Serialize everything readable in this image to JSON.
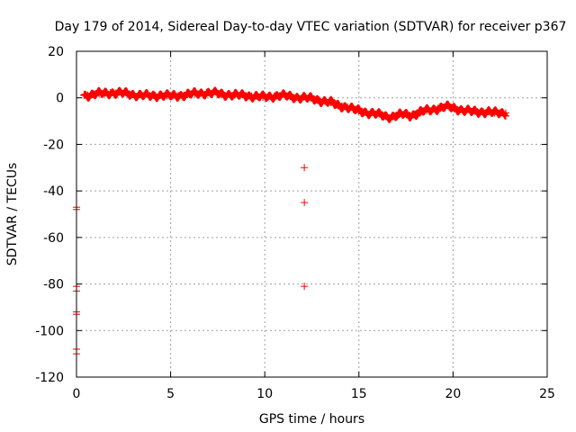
{
  "chart_data": {
    "type": "scatter",
    "title": "Day 179 of 2014, Sidereal Day-to-day VTEC variation (SDTVAR) for receiver p367",
    "xlabel": "GPS time / hours",
    "ylabel": "SDTVAR / TECUs",
    "xlim": [
      0,
      25
    ],
    "ylim": [
      -120,
      20
    ],
    "xticks": [
      0,
      5,
      10,
      15,
      20,
      25
    ],
    "yticks": [
      -120,
      -100,
      -80,
      -60,
      -40,
      -20,
      0,
      20
    ],
    "grid": true,
    "marker": "+",
    "color": "#ff0000",
    "series": [
      {
        "name": "main",
        "x": [
          0.4,
          0.6,
          0.9,
          1.2,
          1.5,
          1.8,
          2.1,
          2.4,
          2.7,
          3.0,
          3.3,
          3.6,
          3.9,
          4.2,
          4.5,
          4.8,
          5.1,
          5.4,
          5.7,
          6.0,
          6.3,
          6.6,
          6.9,
          7.2,
          7.5,
          7.8,
          8.1,
          8.4,
          8.7,
          9.0,
          9.3,
          9.6,
          9.9,
          10.2,
          10.5,
          10.8,
          11.1,
          11.4,
          11.7,
          12.0,
          12.3,
          12.6,
          12.9,
          13.2,
          13.5,
          13.8,
          14.1,
          14.4,
          14.7,
          15.0,
          15.3,
          15.6,
          15.9,
          16.2,
          16.5,
          16.8,
          17.1,
          17.4,
          17.7,
          18.0,
          18.3,
          18.6,
          18.9,
          19.2,
          19.5,
          19.8,
          20.1,
          20.4,
          20.7,
          21.0,
          21.3,
          21.6,
          21.9,
          22.2,
          22.5,
          22.8
        ],
        "y": [
          1.0,
          1.2,
          1.5,
          1.8,
          2.0,
          2.2,
          2.1,
          2.0,
          1.8,
          1.5,
          1.2,
          1.0,
          0.8,
          1.0,
          1.2,
          0.9,
          0.8,
          1.0,
          1.2,
          1.5,
          1.8,
          2.0,
          2.2,
          2.0,
          1.8,
          1.5,
          1.5,
          1.2,
          1.0,
          1.0,
          0.8,
          0.6,
          0.3,
          0.5,
          0.8,
          1.0,
          0.8,
          0.5,
          0.3,
          0.1,
          -0.2,
          -0.5,
          -1.0,
          -1.5,
          -2.0,
          -3.0,
          -3.5,
          -4.0,
          -5.0,
          -5.5,
          -6.0,
          -6.5,
          -7.0,
          -7.5,
          -8.0,
          -8.0,
          -7.5,
          -7.0,
          -7.5,
          -7.0,
          -6.0,
          -5.5,
          -5.0,
          -4.5,
          -4.0,
          -4.0,
          -4.5,
          -5.0,
          -5.5,
          -6.0,
          -6.0,
          -6.0,
          -6.0,
          -6.5,
          -6.5,
          -6.5
        ]
      },
      {
        "name": "outliers",
        "x": [
          0.0,
          0.0,
          0.0,
          0.0,
          0.0,
          0.0,
          0.0,
          0.0,
          12.1,
          12.1,
          12.1
        ],
        "y": [
          -47,
          -48,
          -81,
          -83,
          -92,
          -93,
          -108,
          -110,
          -30,
          -45,
          -81
        ]
      }
    ]
  }
}
